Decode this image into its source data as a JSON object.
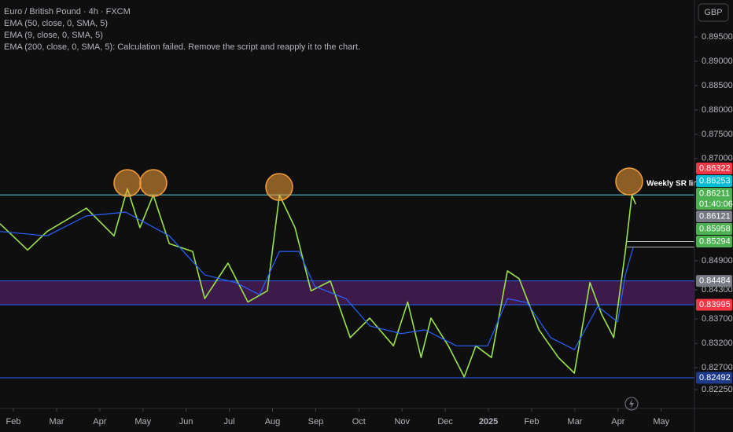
{
  "chart_data": {
    "type": "line",
    "title": "Euro / British Pound · 4h · FXCM",
    "notes": [
      "EMA (9, close, 0, SMA, 5)",
      "EMA (200, close, 0, SMA, 5): Calculation failed. Remove the script and reapply it to the chart."
    ],
    "currency": "GBP",
    "annotation": "Weekly SR line",
    "xlim": [
      -0.31,
      15.77
    ],
    "ylim": [
      0.81863,
      0.90259
    ],
    "xticks": [
      {
        "value": 0,
        "label": "Feb"
      },
      {
        "value": 1,
        "label": "Mar"
      },
      {
        "value": 2,
        "label": "Apr"
      },
      {
        "value": 3,
        "label": "May"
      },
      {
        "value": 4,
        "label": "Jun"
      },
      {
        "value": 5,
        "label": "Jul"
      },
      {
        "value": 6,
        "label": "Aug"
      },
      {
        "value": 7,
        "label": "Sep"
      },
      {
        "value": 8,
        "label": "Oct"
      },
      {
        "value": 9,
        "label": "Nov"
      },
      {
        "value": 10,
        "label": "Dec"
      },
      {
        "value": 11,
        "label": "2025"
      },
      {
        "value": 12,
        "label": "Feb"
      },
      {
        "value": 13,
        "label": "Mar"
      },
      {
        "value": 14,
        "label": "Apr"
      },
      {
        "value": 15,
        "label": "May"
      }
    ],
    "yticks": [
      {
        "value": 0.895,
        "label": "0.89500"
      },
      {
        "value": 0.89,
        "label": "0.89000"
      },
      {
        "value": 0.885,
        "label": "0.88500"
      },
      {
        "value": 0.88,
        "label": "0.88000"
      },
      {
        "value": 0.875,
        "label": "0.87500"
      },
      {
        "value": 0.87,
        "label": "0.87000"
      },
      {
        "value": 0.849,
        "label": "0.84900"
      },
      {
        "value": 0.843,
        "label": "0.84300"
      },
      {
        "value": 0.837,
        "label": "0.83700"
      },
      {
        "value": 0.832,
        "label": "0.83200"
      },
      {
        "value": 0.827,
        "label": "0.82700"
      },
      {
        "value": 0.8225,
        "label": "0.82250"
      }
    ],
    "series": [
      {
        "name": "Euro / British Pound · 4h · FXCM",
        "color": "#9be34a",
        "x": [
          -0.31,
          0.33,
          0.78,
          1.69,
          2.33,
          2.64,
          2.93,
          3.24,
          3.61,
          4.15,
          4.43,
          4.97,
          5.43,
          5.88,
          6.16,
          6.52,
          6.89,
          7.34,
          7.8,
          8.25,
          8.8,
          9.13,
          9.44,
          9.67,
          10.07,
          10.44,
          10.71,
          11.07,
          11.44,
          11.71,
          12.17,
          12.62,
          12.99,
          13.35,
          13.62,
          13.9,
          14.17,
          14.32,
          14.41
        ],
        "values": [
          0.8566,
          0.8512,
          0.855,
          0.8598,
          0.8541,
          0.8638,
          0.8558,
          0.8625,
          0.8525,
          0.8509,
          0.8412,
          0.8485,
          0.8405,
          0.8428,
          0.8625,
          0.8558,
          0.8428,
          0.8448,
          0.8332,
          0.8372,
          0.8315,
          0.8405,
          0.8291,
          0.8372,
          0.8315,
          0.8251,
          0.8315,
          0.8291,
          0.8469,
          0.8453,
          0.8348,
          0.8291,
          0.8259,
          0.8445,
          0.838,
          0.8332,
          0.8509,
          0.8625,
          0.8606
        ]
      },
      {
        "name": "EMA (50, close, 0, SMA, 5)",
        "color": "#2962ff",
        "x": [
          -0.31,
          0.78,
          1.69,
          2.6,
          3.61,
          4.43,
          5.15,
          5.7,
          6.16,
          6.61,
          6.98,
          7.7,
          8.25,
          8.98,
          9.53,
          10.26,
          10.98,
          11.44,
          11.89,
          12.44,
          12.99,
          13.53,
          13.99,
          14.17,
          14.35
        ],
        "values": [
          0.855,
          0.8541,
          0.8582,
          0.859,
          0.8541,
          0.8461,
          0.8445,
          0.842,
          0.8509,
          0.8509,
          0.8437,
          0.8412,
          0.8356,
          0.834,
          0.8348,
          0.8315,
          0.8315,
          0.8412,
          0.8404,
          0.8332,
          0.8307,
          0.8396,
          0.8364,
          0.8461,
          0.8517
        ]
      }
    ],
    "levels": [
      {
        "value": 0.86253,
        "color": "#4dd0e1"
      },
      {
        "value": 0.84484,
        "color": "#2962ff"
      },
      {
        "value": 0.83995,
        "color": "#2962ff"
      },
      {
        "value": 0.82492,
        "color": "#2962ff"
      }
    ],
    "zone": {
      "from": 0.84484,
      "to": 0.83995,
      "color": "#3d1a4a"
    },
    "short_levels": [
      0.85294,
      0.8518
    ],
    "price_tags": [
      {
        "value": 0.86322,
        "label": "0.86322",
        "color": "#f23645"
      },
      {
        "value": 0.86253,
        "label": "0.86253",
        "color": "#00bcd4"
      },
      {
        "value": 0.86211,
        "label": "0.86211",
        "color": "#4caf50",
        "countdown": "01:40:06"
      },
      {
        "value": 0.86121,
        "label": "0.86121",
        "color": "#787b86"
      },
      {
        "value": 0.85958,
        "label": "0.85958",
        "color": "#4caf50"
      },
      {
        "value": 0.85294,
        "label": "0.85294",
        "color": "#4caf50"
      },
      {
        "value": 0.84484,
        "label": "0.84484",
        "color": "#787b86"
      },
      {
        "value": 0.83995,
        "label": "0.83995",
        "color": "#f23645"
      },
      {
        "value": 0.82492,
        "label": "0.82492",
        "color": "#1e3a8a"
      }
    ]
  }
}
